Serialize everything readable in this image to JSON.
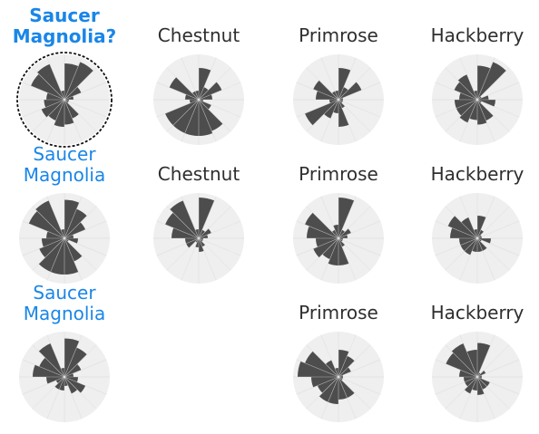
{
  "puzzle": {
    "accent_color": "#1a86e8",
    "text_color": "#2e2e2e",
    "wedge_color": "#4d4d4d",
    "disk_color": "#efefef",
    "cells": [
      {
        "label": "Saucer\nMagnolia?",
        "style": "bold",
        "selected": true,
        "radii": [
          0.8,
          0.9,
          0.4,
          0.2,
          0.1,
          0.1,
          0.45,
          0.55,
          0.6,
          0.5,
          0.55,
          0.45,
          0.4,
          0.8,
          0.85,
          0.2
        ]
      },
      {
        "label": "Chestnut",
        "style": "normal",
        "selected": false,
        "radii": [
          0.7,
          0.3,
          0.55,
          0.3,
          0.1,
          0.3,
          0.75,
          0.8,
          0.8,
          0.8,
          0.8,
          0.2,
          0.3,
          0.7,
          0.2,
          0.2
        ]
      },
      {
        "label": "Primrose",
        "style": "normal",
        "selected": false,
        "radii": [
          0.7,
          0.3,
          0.55,
          0.1,
          0.1,
          0.1,
          0.2,
          0.6,
          0.3,
          0.45,
          0.8,
          0.2,
          0.5,
          0.6,
          0.2,
          0.2
        ]
      },
      {
        "label": "Hackberry",
        "style": "normal",
        "selected": false,
        "radii": [
          0.75,
          0.9,
          0.1,
          0.25,
          0.4,
          0.1,
          0.5,
          0.55,
          0.45,
          0.55,
          0.5,
          0.5,
          0.4,
          0.55,
          0.6,
          0.2
        ]
      },
      {
        "label": "Saucer\nMagnolia",
        "style": "accent",
        "selected": false,
        "radii": [
          0.85,
          0.7,
          0.5,
          0.2,
          0.3,
          0.1,
          0.55,
          0.8,
          0.8,
          0.8,
          0.6,
          0.5,
          0.4,
          0.85,
          0.9,
          0.2
        ]
      },
      {
        "label": "Chestnut",
        "style": "normal",
        "selected": false,
        "radii": [
          0.9,
          0.2,
          0.3,
          0.2,
          0.1,
          0.1,
          0.2,
          0.3,
          0.2,
          0.1,
          0.3,
          0.3,
          0.6,
          0.8,
          0.9,
          0.2
        ]
      },
      {
        "label": "Primrose",
        "style": "normal",
        "selected": false,
        "radii": [
          0.9,
          0.2,
          0.3,
          0.2,
          0.1,
          0.1,
          0.2,
          0.6,
          0.6,
          0.5,
          0.6,
          0.5,
          0.7,
          0.8,
          0.2,
          0.3
        ]
      },
      {
        "label": "Hackberry",
        "style": "normal",
        "selected": false,
        "radii": [
          0.5,
          0.2,
          0.1,
          0.1,
          0.3,
          0.1,
          0.3,
          0.3,
          0.3,
          0.4,
          0.4,
          0.4,
          0.6,
          0.7,
          0.5,
          0.2
        ]
      },
      {
        "label": "Saucer\nMagnolia",
        "style": "accent",
        "selected": false,
        "radii": [
          0.85,
          0.7,
          0.4,
          0.2,
          0.3,
          0.5,
          0.4,
          0.2,
          0.3,
          0.3,
          0.2,
          0.4,
          0.7,
          0.6,
          0.8,
          0.2
        ]
      },
      {
        "label": "",
        "style": "empty",
        "selected": false,
        "radii": []
      },
      {
        "label": "Primrose",
        "style": "normal",
        "selected": false,
        "radii": [
          0.6,
          0.5,
          0.3,
          0.1,
          0.1,
          0.1,
          0.5,
          0.5,
          0.6,
          0.6,
          0.5,
          0.6,
          0.9,
          0.8,
          0.4,
          0.2
        ]
      },
      {
        "label": "Hackberry",
        "style": "normal",
        "selected": false,
        "radii": [
          0.75,
          0.1,
          0.2,
          0.1,
          0.1,
          0.3,
          0.3,
          0.4,
          0.3,
          0.4,
          0.3,
          0.3,
          0.4,
          0.75,
          0.8,
          0.6
        ]
      }
    ]
  }
}
